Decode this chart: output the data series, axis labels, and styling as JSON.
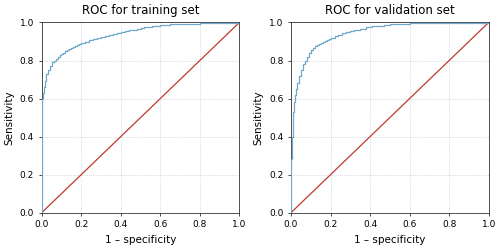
{
  "title_train": "ROC for training set",
  "title_val": "ROC for validation set",
  "xlabel": "1 – specificity",
  "ylabel": "Sensitivity",
  "xlim": [
    0.0,
    1.0
  ],
  "ylim": [
    0.0,
    1.0
  ],
  "xticks": [
    0.0,
    0.2,
    0.4,
    0.6,
    0.8,
    1.0
  ],
  "yticks": [
    0.0,
    0.2,
    0.4,
    0.6,
    0.8,
    1.0
  ],
  "roc_color": "#6fa8cc",
  "diag_color": "#c0392b",
  "grid_color": "#c8c8d8",
  "background_color": "#ffffff",
  "title_fontsize": 8.5,
  "label_fontsize": 7.5,
  "tick_fontsize": 6.5,
  "train_fpr": [
    0.0,
    0.0,
    0.005,
    0.01,
    0.015,
    0.02,
    0.02,
    0.03,
    0.04,
    0.05,
    0.06,
    0.07,
    0.08,
    0.09,
    0.1,
    0.11,
    0.12,
    0.13,
    0.14,
    0.15,
    0.16,
    0.17,
    0.18,
    0.19,
    0.2,
    0.22,
    0.24,
    0.26,
    0.28,
    0.3,
    0.32,
    0.34,
    0.36,
    0.38,
    0.4,
    0.42,
    0.44,
    0.46,
    0.48,
    0.5,
    0.52,
    0.54,
    0.56,
    0.58,
    0.6,
    0.65,
    0.7,
    0.8,
    0.9,
    1.0
  ],
  "train_tpr": [
    0.0,
    0.6,
    0.63,
    0.66,
    0.69,
    0.72,
    0.73,
    0.75,
    0.77,
    0.79,
    0.8,
    0.81,
    0.82,
    0.83,
    0.835,
    0.84,
    0.85,
    0.855,
    0.86,
    0.865,
    0.87,
    0.875,
    0.88,
    0.885,
    0.89,
    0.898,
    0.906,
    0.912,
    0.918,
    0.924,
    0.93,
    0.935,
    0.94,
    0.945,
    0.95,
    0.954,
    0.958,
    0.963,
    0.967,
    0.97,
    0.975,
    0.978,
    0.981,
    0.984,
    0.986,
    0.99,
    0.993,
    0.996,
    0.998,
    1.0
  ],
  "val_fpr": [
    0.0,
    0.0,
    0.002,
    0.004,
    0.006,
    0.008,
    0.01,
    0.012,
    0.014,
    0.016,
    0.018,
    0.02,
    0.025,
    0.03,
    0.04,
    0.05,
    0.06,
    0.07,
    0.08,
    0.09,
    0.1,
    0.11,
    0.12,
    0.13,
    0.14,
    0.15,
    0.16,
    0.17,
    0.18,
    0.19,
    0.2,
    0.22,
    0.24,
    0.26,
    0.28,
    0.3,
    0.32,
    0.35,
    0.38,
    0.41,
    0.44,
    0.47,
    0.5,
    0.55,
    0.6,
    0.65,
    0.7,
    0.8,
    0.9,
    1.0
  ],
  "val_tpr": [
    0.0,
    0.22,
    0.28,
    0.35,
    0.4,
    0.45,
    0.5,
    0.53,
    0.56,
    0.58,
    0.6,
    0.62,
    0.65,
    0.68,
    0.72,
    0.75,
    0.78,
    0.8,
    0.82,
    0.84,
    0.855,
    0.865,
    0.875,
    0.882,
    0.888,
    0.893,
    0.898,
    0.903,
    0.908,
    0.913,
    0.918,
    0.928,
    0.936,
    0.943,
    0.95,
    0.956,
    0.962,
    0.968,
    0.974,
    0.979,
    0.983,
    0.987,
    0.99,
    0.993,
    0.995,
    0.997,
    0.998,
    0.999,
    0.9995,
    1.0
  ]
}
